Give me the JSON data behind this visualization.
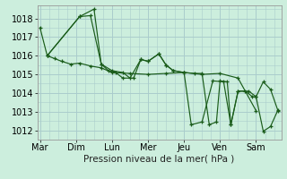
{
  "background_color": "#cceedd",
  "grid_color": "#aacccc",
  "line_color": "#1a5c1a",
  "marker_color": "#1a5c1a",
  "xlabel": "Pression niveau de la mer( hPa )",
  "xlabel_fontsize": 7.5,
  "tick_fontsize": 7,
  "ylim": [
    1011.5,
    1018.7
  ],
  "yticks": [
    1012,
    1013,
    1014,
    1015,
    1016,
    1017,
    1018
  ],
  "day_labels": [
    "Mar",
    "Dim",
    "Lun",
    "Mer",
    "Jeu",
    "Ven",
    "Sam"
  ],
  "day_positions": [
    0,
    40,
    80,
    120,
    160,
    200,
    240
  ],
  "xlim": [
    -3,
    268
  ],
  "series": [
    [
      0,
      1017.5,
      8,
      1016.0,
      16,
      1015.85,
      24,
      1015.7,
      34,
      1015.55,
      44,
      1015.6,
      56,
      1015.45,
      68,
      1015.35,
      80,
      1015.1,
      100,
      1015.05,
      120,
      1015.0,
      140,
      1015.05,
      160,
      1015.1,
      180,
      1015.0,
      200,
      1015.05,
      220,
      1014.8,
      240,
      1013.05
    ],
    [
      8,
      1016.0,
      44,
      1018.1,
      56,
      1018.15,
      68,
      1015.55,
      80,
      1015.2,
      92,
      1015.1,
      100,
      1014.8,
      112,
      1015.8,
      120,
      1015.7,
      132,
      1016.1,
      140,
      1015.5,
      148,
      1015.2,
      160,
      1015.1,
      172,
      1015.05,
      180,
      1015.05,
      188,
      1012.3,
      196,
      1012.45,
      200,
      1014.65,
      208,
      1014.6,
      212,
      1012.3,
      220,
      1014.1,
      228,
      1014.1,
      236,
      1013.8,
      240,
      1013.8,
      248,
      1014.6,
      256,
      1014.2,
      264,
      1013.1
    ],
    [
      8,
      1016.0,
      44,
      1018.1,
      60,
      1018.5,
      68,
      1015.55,
      76,
      1015.2,
      84,
      1015.1,
      92,
      1014.8,
      104,
      1014.8,
      112,
      1015.8,
      120,
      1015.7,
      132,
      1016.1,
      140,
      1015.5,
      148,
      1015.2,
      160,
      1015.1,
      168,
      1012.3,
      180,
      1012.45,
      192,
      1014.65,
      204,
      1014.6,
      212,
      1012.3,
      220,
      1014.1,
      232,
      1014.1,
      240,
      1013.8,
      248,
      1011.95,
      256,
      1012.2,
      264,
      1013.05
    ]
  ]
}
